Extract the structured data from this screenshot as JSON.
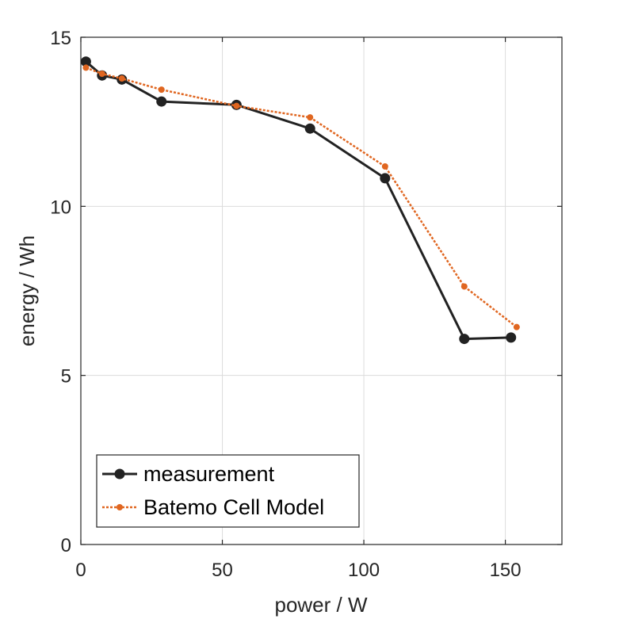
{
  "chart_data": {
    "type": "line",
    "xlabel": "power / W",
    "ylabel": "energy / Wh",
    "xlim": [
      0,
      170
    ],
    "ylim": [
      0,
      15
    ],
    "xticks": [
      "0",
      "50",
      "100",
      "150"
    ],
    "yticks": [
      "0",
      "5",
      "10",
      "15"
    ],
    "grid": true,
    "legend_position": "bottom-left",
    "series": [
      {
        "name": "measurement",
        "color": "#222222",
        "line_style": "solid",
        "marker": "circle",
        "x": [
          1.8,
          7.5,
          14.5,
          28.5,
          55.0,
          81.0,
          107.5,
          135.5,
          152.0
        ],
        "y": [
          14.28,
          13.87,
          13.75,
          13.1,
          13.0,
          12.3,
          10.83,
          6.08,
          6.12
        ]
      },
      {
        "name": "Batemo Cell Model",
        "color": "#e06620",
        "line_style": "dotted",
        "marker": "dot",
        "x": [
          1.8,
          7.5,
          14.5,
          28.5,
          55.0,
          81.0,
          107.5,
          135.5,
          154.0
        ],
        "y": [
          14.1,
          13.92,
          13.78,
          13.45,
          12.97,
          12.63,
          11.18,
          7.63,
          6.43
        ]
      }
    ]
  }
}
